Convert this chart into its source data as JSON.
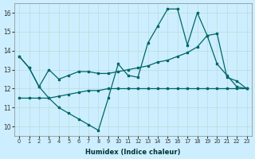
{
  "xlabel": "Humidex (Indice chaleur)",
  "background_color": "#cceeff",
  "grid_color": "#b8ddd8",
  "line_color": "#006666",
  "xlim": [
    -0.5,
    23.5
  ],
  "ylim": [
    9.5,
    16.5
  ],
  "xticks": [
    0,
    1,
    2,
    3,
    4,
    5,
    6,
    7,
    8,
    9,
    10,
    11,
    12,
    13,
    14,
    15,
    16,
    17,
    18,
    19,
    20,
    21,
    22,
    23
  ],
  "yticks": [
    10,
    11,
    12,
    13,
    14,
    15,
    16
  ],
  "line1_x": [
    0,
    1,
    2,
    3,
    4,
    5,
    6,
    7,
    8,
    9,
    10,
    11,
    12,
    13,
    14,
    15,
    16,
    17,
    18,
    19,
    20,
    21,
    22,
    23
  ],
  "line1_y": [
    13.7,
    13.1,
    12.1,
    13.0,
    12.5,
    12.7,
    12.9,
    12.9,
    12.8,
    12.8,
    12.9,
    13.0,
    13.1,
    13.2,
    13.4,
    13.5,
    13.7,
    13.9,
    14.2,
    14.8,
    13.3,
    12.7,
    12.1,
    12.0
  ],
  "line2_x": [
    0,
    1,
    2,
    3,
    4,
    5,
    6,
    7,
    8,
    9,
    10,
    11,
    12,
    13,
    14,
    15,
    16,
    17,
    18,
    19,
    20,
    21,
    22,
    23
  ],
  "line2_y": [
    13.7,
    13.1,
    12.1,
    11.5,
    11.0,
    10.7,
    10.4,
    10.1,
    9.8,
    11.5,
    13.3,
    12.7,
    12.6,
    14.4,
    15.3,
    16.2,
    16.2,
    14.3,
    16.0,
    14.8,
    14.9,
    12.6,
    12.4,
    12.0
  ],
  "line3_x": [
    0,
    1,
    2,
    3,
    4,
    5,
    6,
    7,
    8,
    9,
    10,
    11,
    12,
    13,
    14,
    15,
    16,
    17,
    18,
    19,
    20,
    21,
    22,
    23
  ],
  "line3_y": [
    11.5,
    11.5,
    11.5,
    11.5,
    11.6,
    11.7,
    11.8,
    11.9,
    11.9,
    12.0,
    12.0,
    12.0,
    12.0,
    12.0,
    12.0,
    12.0,
    12.0,
    12.0,
    12.0,
    12.0,
    12.0,
    12.0,
    12.0,
    12.0
  ]
}
